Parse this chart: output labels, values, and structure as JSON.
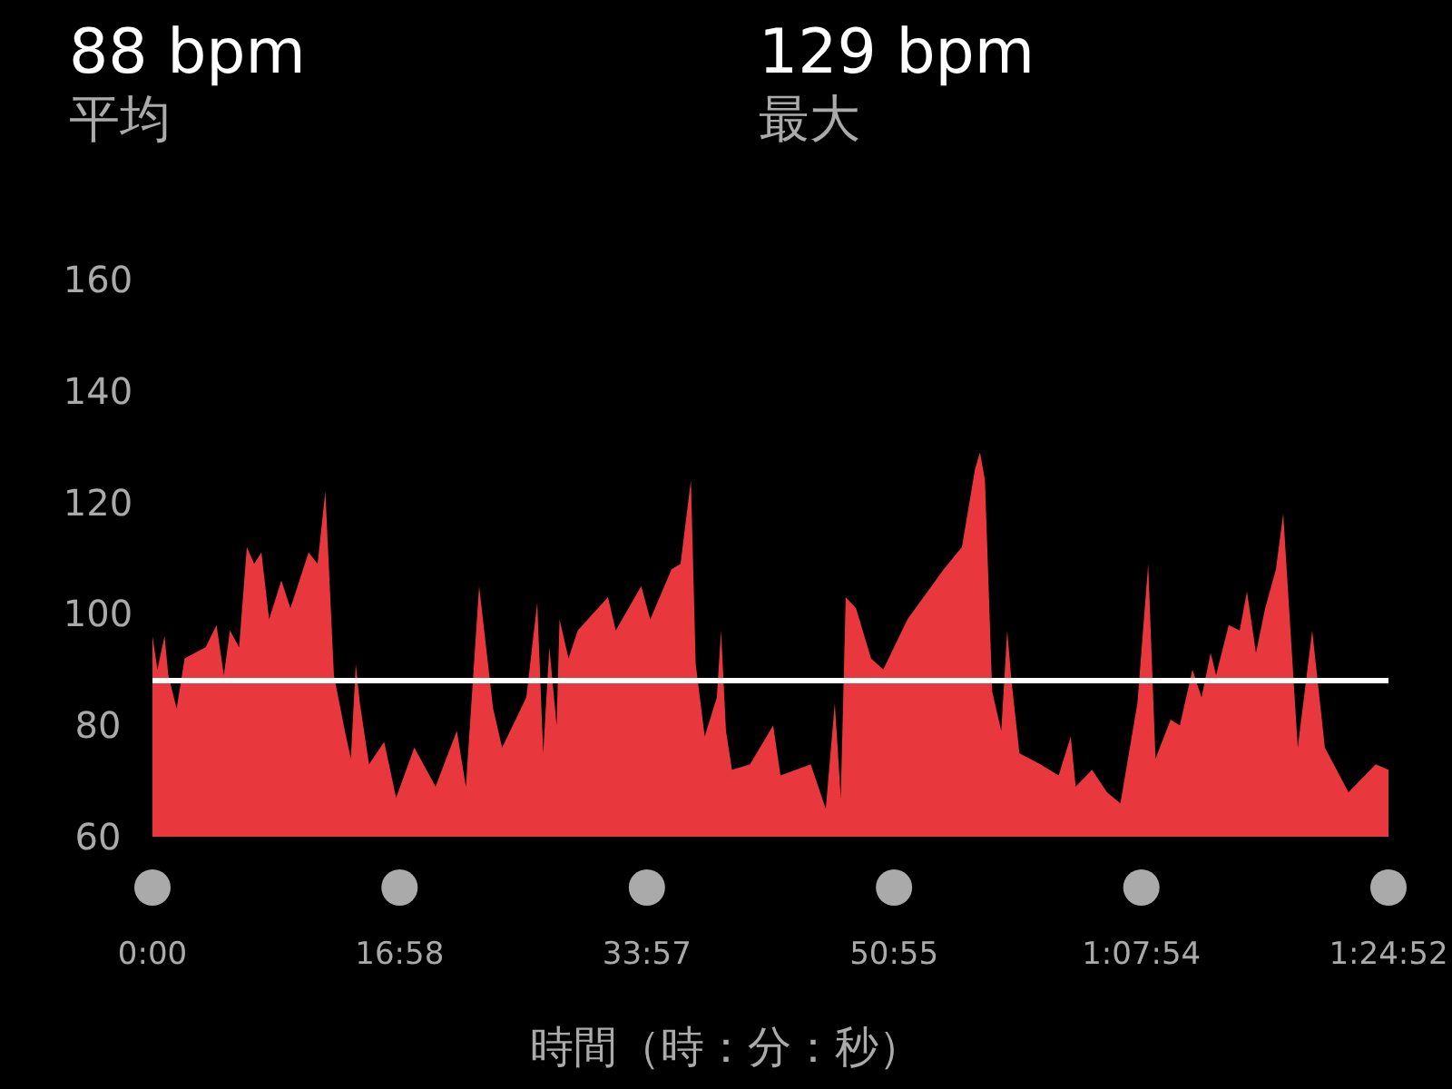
{
  "chart_data": {
    "type": "area",
    "xlabel": "時間（時：分：秒）",
    "annotations": [
      "88 bpm",
      "平均",
      "129 bpm",
      "最大"
    ],
    "xlim": [
      0,
      84.867
    ],
    "ylim": [
      60,
      160
    ],
    "xticks": [
      {
        "value": 0,
        "label": "0:00"
      },
      {
        "value": 16.967,
        "label": "16:58"
      },
      {
        "value": 33.95,
        "label": "33:57"
      },
      {
        "value": 50.917,
        "label": "50:55"
      },
      {
        "value": 67.9,
        "label": "1:07:54"
      },
      {
        "value": 84.867,
        "label": "1:24:52"
      }
    ],
    "yticks": [
      60,
      80,
      100,
      120,
      140,
      160
    ],
    "grid": false,
    "ref_lines": [
      {
        "axis": "y",
        "value": 88,
        "color": "#ffffff"
      }
    ],
    "series": [
      {
        "color": "#e8383d",
        "x": [
          0,
          0.34,
          0.83,
          1.09,
          1.66,
          2.21,
          3.65,
          4.4,
          4.9,
          5.32,
          5.95,
          6.48,
          6.98,
          7.48,
          8.01,
          8.85,
          9.47,
          10.72,
          11.34,
          11.87,
          12.46,
          13.21,
          13.62,
          13.96,
          14.24,
          14.87,
          15.91,
          16.73,
          17.98,
          19.44,
          20.9,
          21.52,
          22.43,
          23.39,
          24.01,
          25.67,
          26.42,
          26.83,
          27.25,
          27.75,
          27.95,
          28.57,
          29.2,
          31.28,
          31.81,
          33.56,
          34.18,
          35.64,
          36.26,
          36.97,
          37.3,
          37.92,
          38.75,
          39.04,
          39.38,
          39.79,
          41.03,
          42.62,
          43.12,
          45.2,
          46.23,
          46.85,
          47.26,
          47.6,
          48.31,
          49.34,
          50.18,
          51.84,
          53.5,
          54.33,
          55.58,
          56.48,
          56.82,
          57.16,
          57.66,
          58.28,
          58.69,
          58.98,
          59.53,
          60.97,
          62.22,
          63.05,
          63.39,
          64.51,
          65.54,
          66.46,
          67.63,
          68.37,
          68.87,
          69.91,
          70.54,
          71.41,
          72.03,
          72.66,
          73.03,
          73.9,
          74.65,
          75.15,
          75.77,
          76.4,
          77.14,
          77.64,
          78.64,
          79.63,
          80.5,
          82.12,
          83.99,
          84.867
        ],
        "values": [
          96,
          90,
          96,
          89,
          83,
          92,
          94,
          98,
          89,
          97,
          94,
          112,
          109,
          111,
          99,
          106,
          101,
          111,
          109,
          122,
          89,
          79,
          74,
          91,
          84,
          73,
          77,
          67,
          76,
          69,
          79,
          69,
          105,
          83,
          76,
          85,
          102,
          75,
          94,
          80,
          99,
          92,
          97,
          103,
          97,
          105,
          99,
          108,
          109,
          124,
          91,
          78,
          85,
          97,
          79,
          72,
          73,
          80,
          71,
          73,
          65,
          84,
          67,
          103,
          101,
          92,
          90,
          99,
          105,
          108,
          112,
          126,
          129,
          124,
          86,
          79,
          97,
          88,
          75,
          73,
          71,
          78,
          69,
          72,
          68,
          66,
          84,
          109,
          74,
          81,
          80,
          90,
          85,
          93,
          89,
          98,
          97,
          104,
          93,
          101,
          108,
          118,
          76,
          97,
          76,
          68,
          73,
          72
        ]
      }
    ]
  }
}
